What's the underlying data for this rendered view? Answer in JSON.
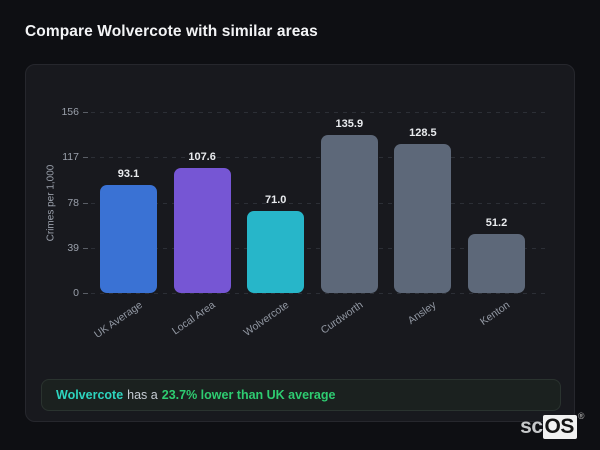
{
  "page_title": "Compare Wolvercote with similar areas",
  "chart_data": {
    "type": "bar",
    "title": "",
    "xlabel": "",
    "ylabel": "Crimes per 1,000",
    "categories": [
      "UK Average",
      "Local Area",
      "Wolvercote",
      "Curdworth",
      "Ansley",
      "Kenton"
    ],
    "values": [
      93.1,
      107.6,
      71.0,
      135.9,
      128.5,
      51.2
    ],
    "value_labels": [
      "93.1",
      "107.6",
      "71.0",
      "135.9",
      "128.5",
      "51.2"
    ],
    "bar_colors": [
      "#3a72d4",
      "#7656d4",
      "#27b6c9",
      "#5d6879",
      "#5d6879",
      "#5d6879"
    ],
    "yticks": [
      0,
      39,
      78,
      117,
      156
    ],
    "ylim": [
      0,
      156
    ],
    "grid": "dashed horizontal gridlines",
    "legend": "none"
  },
  "note": {
    "area_name": "Wolvercote",
    "middle_text": "has a",
    "highlight_text": "23.7% lower than UK average",
    "area_color": "#2dd4bf",
    "highlight_color": "#2ecc71"
  },
  "logo": {
    "prefix": "sc",
    "suffix": "OS",
    "registered": "®"
  },
  "colors": {
    "page_background": "#0e0f13",
    "card_background": "#18191e",
    "card_border": "#26272d",
    "axis_text": "#9aa0ab",
    "value_label_text": "#e9ebee",
    "note_background": "#1b211f"
  }
}
